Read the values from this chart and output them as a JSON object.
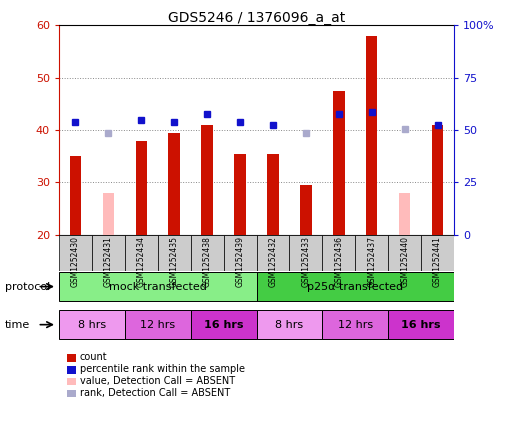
{
  "title": "GDS5246 / 1376096_a_at",
  "samples": [
    "GSM1252430",
    "GSM1252431",
    "GSM1252434",
    "GSM1252435",
    "GSM1252438",
    "GSM1252439",
    "GSM1252432",
    "GSM1252433",
    "GSM1252436",
    "GSM1252437",
    "GSM1252440",
    "GSM1252441"
  ],
  "count_values": [
    35,
    null,
    38,
    39.5,
    41,
    35.5,
    35.5,
    29.5,
    47.5,
    58,
    null,
    41
  ],
  "count_absent": [
    null,
    28,
    null,
    null,
    null,
    null,
    null,
    null,
    null,
    null,
    28,
    null
  ],
  "rank_values": [
    41.5,
    null,
    42,
    41.5,
    43,
    41.5,
    41,
    null,
    43,
    43.5,
    null,
    41
  ],
  "rank_absent": [
    null,
    39.5,
    null,
    null,
    null,
    null,
    null,
    39.5,
    null,
    null,
    40.2,
    null
  ],
  "ylim_left": [
    20,
    60
  ],
  "ylim_right": [
    0,
    100
  ],
  "yticks_left": [
    20,
    30,
    40,
    50,
    60
  ],
  "yticks_right": [
    0,
    25,
    50,
    75,
    100
  ],
  "yticklabels_right": [
    "0",
    "25",
    "50",
    "75",
    "100%"
  ],
  "bar_bottom": 20,
  "protocol_groups": [
    {
      "label": "mock transfected",
      "start": 0,
      "end": 5,
      "color": "#88ee88"
    },
    {
      "label": "p25α transfected",
      "start": 6,
      "end": 11,
      "color": "#44cc44"
    }
  ],
  "time_groups": [
    {
      "label": "8 hrs",
      "start": 0,
      "end": 1,
      "color": "#ee99ee"
    },
    {
      "label": "12 hrs",
      "start": 2,
      "end": 3,
      "color": "#dd66dd"
    },
    {
      "label": "16 hrs",
      "start": 4,
      "end": 5,
      "color": "#cc33cc"
    },
    {
      "label": "8 hrs",
      "start": 6,
      "end": 7,
      "color": "#ee99ee"
    },
    {
      "label": "12 hrs",
      "start": 8,
      "end": 9,
      "color": "#dd66dd"
    },
    {
      "label": "16 hrs",
      "start": 10,
      "end": 11,
      "color": "#cc33cc"
    }
  ],
  "count_color": "#cc1100",
  "count_absent_color": "#ffbbbb",
  "rank_color": "#1111cc",
  "rank_absent_color": "#aaaacc",
  "grid_color": "#888888",
  "label_color_left": "#cc1100",
  "label_color_right": "#1111cc",
  "sample_box_color": "#cccccc",
  "legend_items": [
    {
      "label": "count",
      "color": "#cc1100"
    },
    {
      "label": "percentile rank within the sample",
      "color": "#1111cc"
    },
    {
      "label": "value, Detection Call = ABSENT",
      "color": "#ffbbbb"
    },
    {
      "label": "rank, Detection Call = ABSENT",
      "color": "#aaaacc"
    }
  ]
}
